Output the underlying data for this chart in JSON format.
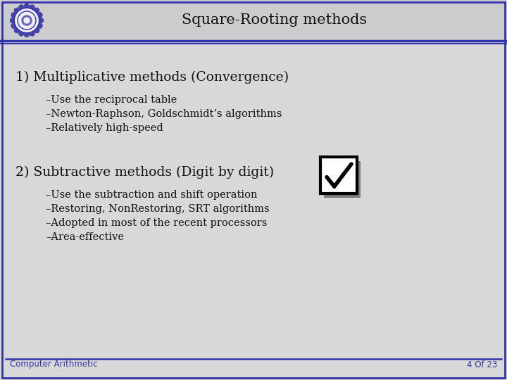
{
  "title": "Square-Rooting methods",
  "bg_color": "#d8d8d8",
  "header_bg": "#ccccce",
  "border_color": "#3333aa",
  "title_color": "#111111",
  "title_fontsize": 15,
  "section1_heading": "1) Multiplicative methods (Convergence)",
  "section1_bullets": [
    "–Use the reciprocal table",
    "–Newton-Raphson, Goldschmidt’s algorithms",
    "–Relatively high-speed"
  ],
  "section2_heading": "2) Subtractive methods (Digit by digit)",
  "section2_bullets": [
    "–Use the subtraction and shift operation",
    "–Restoring, NonRestoring, SRT algorithms",
    "–Adopted in most of the recent processors",
    "–Area-effective"
  ],
  "footer_left": "Computer Arithmetic",
  "footer_right": "4 Of 23",
  "footer_color": "#3333aa",
  "heading_color": "#111111",
  "bullet_color": "#111111",
  "heading_fontsize": 13.5,
  "bullet_fontsize": 10.5
}
